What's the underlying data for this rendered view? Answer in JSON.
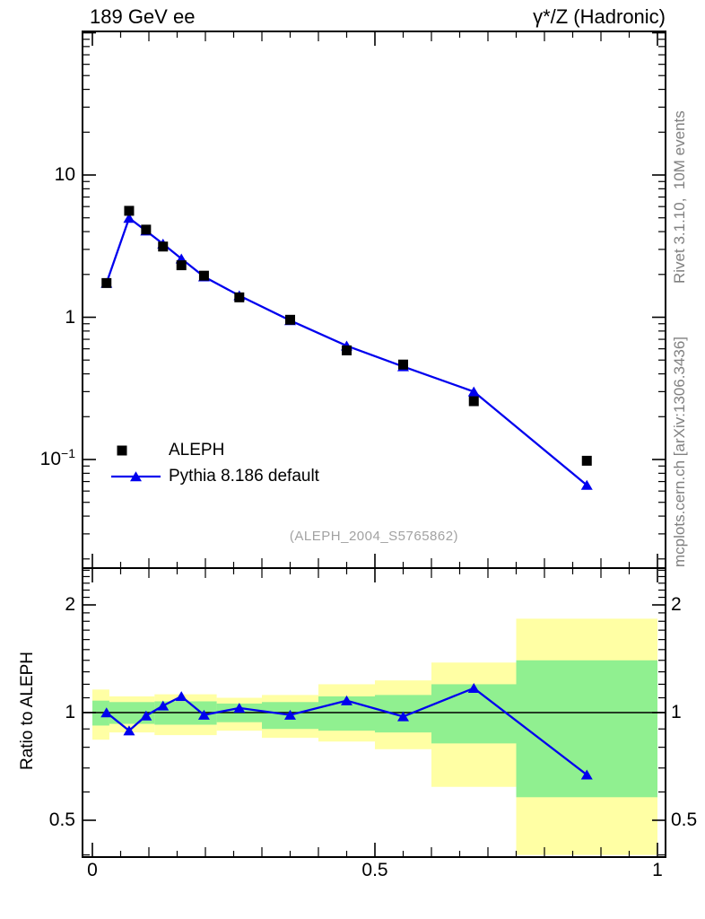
{
  "header": {
    "title_left": "189 GeV ee",
    "title_right": "γ*/Z (Hadronic)"
  },
  "side_notes": {
    "rivet": "Rivet 3.1.10,  10M events",
    "mcplots": "mcplots.cern.ch [arXiv:1306.3436]"
  },
  "watermark": "(ALEPH_2004_S5765862)",
  "colors": {
    "mc_blue": "#0000ee",
    "data_black": "#000000",
    "band_yellow": "#ffffa4",
    "band_green": "#90f090",
    "frame": "#000000",
    "note_gray": "#808080",
    "watermark_gray": "#a2a2a2"
  },
  "legend": {
    "items": [
      {
        "label": "ALEPH",
        "marker": "square",
        "color": "#000000"
      },
      {
        "label": "Pythia 8.186 default",
        "marker": "triangle-line",
        "color": "#0000ee"
      }
    ]
  },
  "chart_data": [
    {
      "type": "line",
      "panel": "main",
      "yscale": "log",
      "xlim": [
        -0.017,
        1.014
      ],
      "ylim": [
        0.0173,
        102
      ],
      "x": [
        0.025,
        0.065,
        0.095,
        0.125,
        0.1575,
        0.1975,
        0.26,
        0.35,
        0.45,
        0.55,
        0.675,
        0.875
      ],
      "series": [
        {
          "name": "ALEPH",
          "marker": "square",
          "color": "#000000",
          "line": false,
          "values": [
            1.74,
            5.6,
            4.13,
            3.14,
            2.32,
            1.96,
            1.38,
            0.96,
            0.585,
            0.465,
            0.257,
            0.098
          ]
        },
        {
          "name": "Pythia 8.186 default",
          "marker": "triangle",
          "color": "#0000ee",
          "line": true,
          "values": [
            1.74,
            4.98,
            4.05,
            3.28,
            2.58,
            1.93,
            1.42,
            0.95,
            0.63,
            0.45,
            0.3,
            0.066
          ]
        }
      ],
      "yticks": [
        {
          "value": 10,
          "base": "10",
          "exp": ""
        },
        {
          "value": 1,
          "base": "1",
          "exp": ""
        },
        {
          "value": 0.1,
          "base": "10",
          "exp": "−1"
        }
      ]
    },
    {
      "type": "ratio",
      "panel": "ratio",
      "yscale": "log",
      "ylabel": "Ratio to ALEPH",
      "ylim": [
        0.394,
        2.54
      ],
      "reference_line": 1,
      "x": [
        0.025,
        0.065,
        0.095,
        0.125,
        0.1575,
        0.1975,
        0.26,
        0.35,
        0.45,
        0.55,
        0.675,
        0.875
      ],
      "values": [
        1.0,
        0.89,
        0.98,
        1.045,
        1.11,
        0.985,
        1.03,
        0.985,
        1.08,
        0.975,
        1.17,
        0.67
      ],
      "bands": [
        {
          "x0": 0.0,
          "x1": 0.03,
          "yellow": [
            0.84,
            1.16
          ],
          "green": [
            0.92,
            1.08
          ]
        },
        {
          "x0": 0.03,
          "x1": 0.11,
          "yellow": [
            0.88,
            1.11
          ],
          "green": [
            0.93,
            1.07
          ]
        },
        {
          "x0": 0.11,
          "x1": 0.22,
          "yellow": [
            0.865,
            1.125
          ],
          "green": [
            0.925,
            1.075
          ]
        },
        {
          "x0": 0.22,
          "x1": 0.3,
          "yellow": [
            0.89,
            1.1
          ],
          "green": [
            0.94,
            1.06
          ]
        },
        {
          "x0": 0.3,
          "x1": 0.4,
          "yellow": [
            0.85,
            1.12
          ],
          "green": [
            0.9,
            1.07
          ]
        },
        {
          "x0": 0.4,
          "x1": 0.5,
          "yellow": [
            0.83,
            1.2
          ],
          "green": [
            0.89,
            1.11
          ]
        },
        {
          "x0": 0.5,
          "x1": 0.6,
          "yellow": [
            0.79,
            1.23
          ],
          "green": [
            0.88,
            1.12
          ]
        },
        {
          "x0": 0.6,
          "x1": 0.75,
          "yellow": [
            0.62,
            1.38
          ],
          "green": [
            0.82,
            1.2
          ]
        },
        {
          "x0": 0.75,
          "x1": 1.0,
          "yellow": [
            0.4,
            1.83
          ],
          "green": [
            0.58,
            1.4
          ]
        }
      ],
      "yticks": [
        {
          "value": 2,
          "base": "2"
        },
        {
          "value": 1,
          "base": "1"
        },
        {
          "value": 0.5,
          "base": "0.5"
        }
      ],
      "xticks": [
        {
          "value": 0,
          "label": "0"
        },
        {
          "value": 0.5,
          "label": "0.5"
        },
        {
          "value": 1,
          "label": "1"
        }
      ]
    }
  ]
}
